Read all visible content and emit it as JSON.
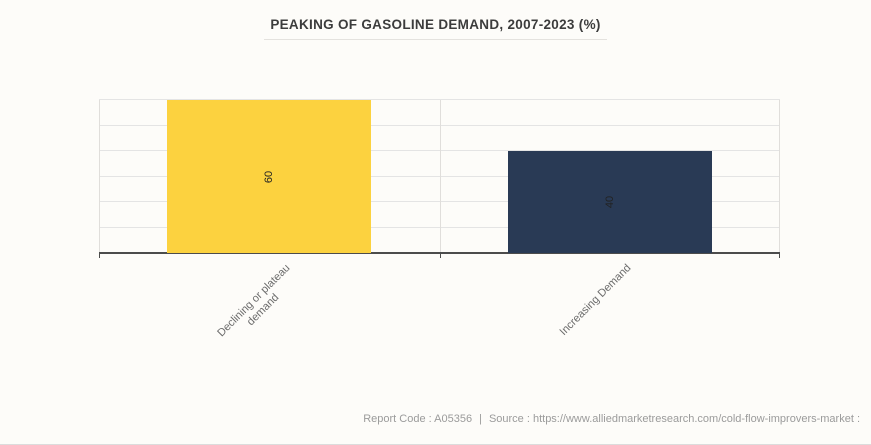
{
  "title": "PEAKING OF GASOLINE DEMAND, 2007-2023 (%)",
  "footer": {
    "report_code": "Report Code : A05356",
    "separator": "|",
    "source": "Source : https://www.alliedmarketresearch.com/cold-flow-improvers-market :"
  },
  "colors": {
    "background": "#fdfcf9",
    "bar_declining": "#fcd23f",
    "bar_increasing": "#293a55",
    "gridline": "#e4e4e4",
    "axis": "#4c4c4c",
    "title_text": "#3c3c3c",
    "tick_label_text": "#6b6b6b",
    "value_label_text": "#222222",
    "footer_text": "#9b9b9b"
  },
  "chart_data": {
    "type": "bar",
    "title": "PEAKING OF GASOLINE DEMAND, 2007-2023 (%)",
    "categories": [
      "Declining or plateau demand",
      "Increasing Demand"
    ],
    "values": [
      60,
      40
    ],
    "data_labels": [
      "60",
      "40"
    ],
    "label_lines": [
      [
        "Declining or plateau",
        "demand"
      ],
      [
        "Increasing Demand"
      ]
    ],
    "bar_colors": [
      "#fcd23f",
      "#293a55"
    ],
    "xlabel": "",
    "ylabel": "",
    "ylim": [
      0,
      60
    ],
    "gridline_interval": 10,
    "grid": true,
    "legend": false,
    "y_axis_labels_visible": false,
    "value_label_rotation": -90,
    "tick_label_rotation": -45,
    "bar_width_fraction": 0.6
  }
}
